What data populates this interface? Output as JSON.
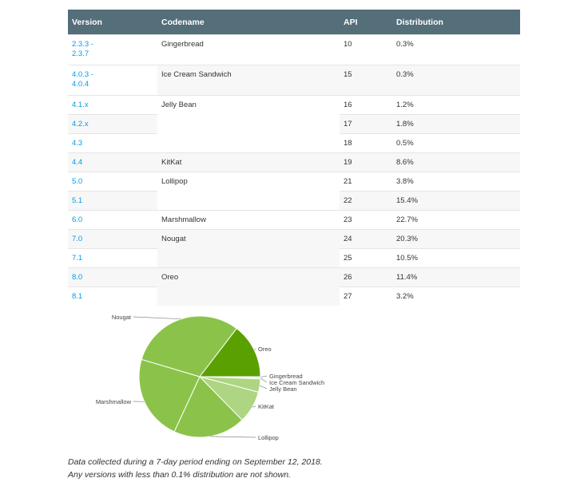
{
  "table": {
    "headers": [
      "Version",
      "Codename",
      "API",
      "Distribution"
    ],
    "rows": [
      {
        "version": "2.3.3 -\n2.3.7",
        "codename": "Gingerbread",
        "api": "10",
        "dist": "0.3%"
      },
      {
        "version": "4.0.3 -\n4.0.4",
        "codename": "Ice Cream Sandwich",
        "api": "15",
        "dist": "0.3%"
      },
      {
        "version": "4.1.x",
        "codename": "Jelly Bean",
        "api": "16",
        "dist": "1.2%"
      },
      {
        "version": "4.2.x",
        "codename": "",
        "api": "17",
        "dist": "1.8%"
      },
      {
        "version": "4.3",
        "codename": "",
        "api": "18",
        "dist": "0.5%"
      },
      {
        "version": "4.4",
        "codename": "KitKat",
        "api": "19",
        "dist": "8.6%"
      },
      {
        "version": "5.0",
        "codename": "Lollipop",
        "api": "21",
        "dist": "3.8%"
      },
      {
        "version": "5.1",
        "codename": "",
        "api": "22",
        "dist": "15.4%"
      },
      {
        "version": "6.0",
        "codename": "Marshmallow",
        "api": "23",
        "dist": "22.7%"
      },
      {
        "version": "7.0",
        "codename": "Nougat",
        "api": "24",
        "dist": "20.3%"
      },
      {
        "version": "7.1",
        "codename": "",
        "api": "25",
        "dist": "10.5%"
      },
      {
        "version": "8.0",
        "codename": "Oreo",
        "api": "26",
        "dist": "11.4%"
      },
      {
        "version": "8.1",
        "codename": "",
        "api": "27",
        "dist": "3.2%"
      }
    ]
  },
  "colors": {
    "header_bg": "#546e7a",
    "link": "#039be5",
    "slice_dark": "#5aa000",
    "slice_mid": "#8bc34a",
    "slice_light": "#aed581",
    "slice_lighter": "#c5e1a5"
  },
  "chart_data": {
    "type": "pie",
    "slices": [
      {
        "label": "Gingerbread",
        "value": 0.3
      },
      {
        "label": "Ice Cream Sandwich",
        "value": 0.3
      },
      {
        "label": "Jelly Bean",
        "value": 3.5
      },
      {
        "label": "KitKat",
        "value": 8.6
      },
      {
        "label": "Lollipop",
        "value": 19.2
      },
      {
        "label": "Marshmallow",
        "value": 22.7
      },
      {
        "label": "Nougat",
        "value": 30.8
      },
      {
        "label": "Oreo",
        "value": 14.6
      }
    ]
  },
  "footnote": {
    "line1": "Data collected during a 7-day period ending on September 12, 2018.",
    "line2": "Any versions with less than 0.1% distribution are not shown."
  }
}
